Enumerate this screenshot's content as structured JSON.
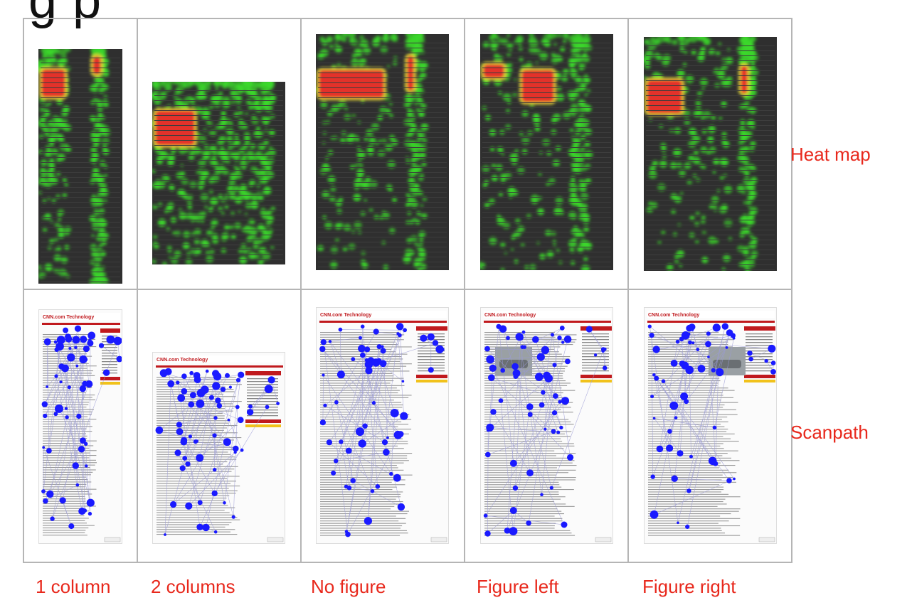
{
  "title_fragment": "g      p",
  "row_labels": [
    "Heat map",
    "Scanpath"
  ],
  "columns": [
    {
      "label": "1 column"
    },
    {
      "label": "2 columns"
    },
    {
      "label": "No figure"
    },
    {
      "label": "Figure left"
    },
    {
      "label": "Figure right"
    }
  ],
  "page_header_logo": "CNN.com Technology",
  "colors": {
    "label": "#e8281c",
    "heat_bg": "#2f2f2f",
    "heat_low": "#3bd92a",
    "heat_mid": "#e6e53a",
    "heat_high": "#e3322a",
    "fixation": "#1a1aff",
    "scanline": "#9b9bd6",
    "cnn_red": "#c0191d",
    "grid": "#b5b5b5"
  }
}
